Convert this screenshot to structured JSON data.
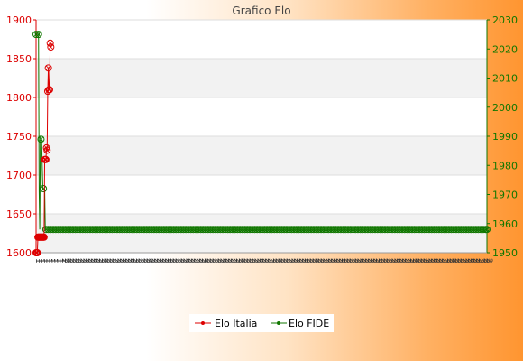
{
  "chart_data": {
    "type": "line",
    "title": "Grafico Elo",
    "grid": true,
    "legend_position": "bottom-center",
    "colors": {
      "left_axis": "#dd0000",
      "right_axis": "#117700",
      "series_italia": "#dd0000",
      "series_fide": "#117700"
    },
    "left_axis": {
      "min": 1600,
      "max": 1900,
      "ticks": [
        "1600",
        "1650",
        "1700",
        "1750",
        "1800",
        "1850",
        "1900"
      ]
    },
    "right_axis": {
      "min": 1950,
      "max": 2030,
      "ticks": [
        "1950",
        "1960",
        "1970",
        "1980",
        "1990",
        "2000",
        "2010",
        "2020",
        "2030"
      ]
    },
    "x_tick_labels": [
      "1",
      "1",
      "1",
      "1",
      "1",
      "1",
      "1",
      "1",
      "1",
      "1",
      "2",
      "2",
      "2",
      "2",
      "2",
      "2",
      "2",
      "2",
      "2",
      "2",
      "2",
      "2",
      "2",
      "2",
      "2",
      "2",
      "2",
      "2",
      "2",
      "2",
      "2",
      "2",
      "2",
      "2",
      "2",
      "2",
      "2",
      "2",
      "2",
      "2",
      "2",
      "2",
      "2",
      "2",
      "2",
      "2",
      "2",
      "2",
      "2",
      "2",
      "2",
      "2",
      "2",
      "2",
      "2",
      "2",
      "2",
      "2",
      "2",
      "2",
      "2",
      "2",
      "2",
      "2",
      "2",
      "2",
      "2",
      "2",
      "2",
      "2",
      "2",
      "2",
      "2",
      "2",
      "2",
      "2",
      "2",
      "2",
      "2",
      "2",
      "2",
      "2",
      "2",
      "2",
      "2",
      "2",
      "2",
      "2",
      "2",
      "2",
      "2",
      "2",
      "2",
      "2",
      "2",
      "2",
      "2",
      "2",
      "2",
      "2",
      "2",
      "2",
      "2",
      "2",
      "2",
      "2",
      "2",
      "2",
      "2",
      "2",
      "2",
      "2",
      "2",
      "2",
      "2",
      "2",
      "2",
      "2",
      "2",
      "2",
      "2",
      "2",
      "2",
      "2",
      "2",
      "2",
      "2",
      "2",
      "2",
      "2",
      "2",
      "2",
      "2",
      "2",
      "2",
      "2",
      "2",
      "2",
      "2",
      "2",
      "2",
      "2",
      "2",
      "2",
      "2",
      "2",
      "2",
      "2",
      "2",
      "2",
      "2",
      "2",
      "2",
      "2",
      "2",
      "2",
      "2",
      "2",
      "2",
      "2",
      "2",
      "2",
      "2",
      "2",
      "2",
      "2",
      "2",
      "2",
      "2",
      "2",
      "2",
      "2"
    ],
    "series": [
      {
        "name": "Elo Italia",
        "axis": "left",
        "values": [
          1600,
          1600,
          1600,
          1620,
          1620,
          1620,
          1620,
          1620,
          1620,
          1620,
          1620,
          1620,
          1620,
          1620,
          1720,
          1720,
          1720,
          1735,
          1732,
          1808,
          1838,
          1810,
          1810,
          1870,
          1865
        ]
      },
      {
        "name": "Elo FIDE",
        "axis": "right",
        "values": [
          2025,
          2025,
          2025,
          2025,
          2025,
          1971,
          1958,
          1990,
          1989,
          1989,
          1980,
          1972,
          1972,
          1972,
          1972,
          1958,
          1958,
          1958,
          1958,
          1958,
          1958,
          1958,
          1958,
          1958,
          1958,
          1958,
          1958,
          1958,
          1958,
          1958,
          1958,
          1958,
          1958,
          1958,
          1958,
          1958,
          1958,
          1958,
          1958,
          1958,
          1958,
          1958,
          1958,
          1958,
          1958,
          1958,
          1958,
          1958,
          1958,
          1958,
          1958,
          1958,
          1958,
          1958,
          1958,
          1958,
          1958,
          1958,
          1958,
          1958,
          1958,
          1958,
          1958,
          1958,
          1958,
          1958,
          1958,
          1958,
          1958,
          1958,
          1958,
          1958,
          1958,
          1958,
          1958,
          1958,
          1958,
          1958,
          1958,
          1958,
          1958,
          1958,
          1958,
          1958,
          1958,
          1958,
          1958,
          1958,
          1958,
          1958,
          1958,
          1958,
          1958,
          1958,
          1958,
          1958,
          1958,
          1958,
          1958,
          1958,
          1958,
          1958,
          1958,
          1958,
          1958,
          1958,
          1958,
          1958,
          1958,
          1958,
          1958,
          1958,
          1958,
          1958,
          1958,
          1958,
          1958,
          1958,
          1958,
          1958,
          1958,
          1958,
          1958,
          1958,
          1958,
          1958,
          1958,
          1958,
          1958,
          1958,
          1958,
          1958,
          1958,
          1958,
          1958,
          1958,
          1958,
          1958,
          1958,
          1958,
          1958,
          1958,
          1958,
          1958,
          1958,
          1958,
          1958,
          1958,
          1958,
          1958,
          1958,
          1958,
          1958,
          1958,
          1958,
          1958,
          1958,
          1958,
          1958,
          1958,
          1958,
          1958,
          1958,
          1958,
          1958,
          1958,
          1958,
          1958,
          1958,
          1958,
          1958,
          1958,
          1958,
          1958,
          1958,
          1958,
          1958,
          1958,
          1958,
          1958,
          1958,
          1958,
          1958,
          1958,
          1958,
          1958,
          1958,
          1958,
          1958,
          1958,
          1958,
          1958,
          1958,
          1958,
          1958,
          1958,
          1958,
          1958,
          1958,
          1958,
          1958,
          1958,
          1958,
          1958,
          1958,
          1958,
          1958,
          1958,
          1958,
          1958,
          1958,
          1958,
          1958,
          1958,
          1958,
          1958,
          1958,
          1958,
          1958,
          1958,
          1958,
          1958,
          1958,
          1958,
          1958,
          1958,
          1958,
          1958,
          1958,
          1958,
          1958,
          1958,
          1958,
          1958,
          1958,
          1958,
          1958,
          1958,
          1958,
          1958,
          1958,
          1958,
          1958,
          1958,
          1958,
          1958,
          1958,
          1958,
          1958,
          1958,
          1958,
          1958,
          1958,
          1958,
          1958,
          1958,
          1958,
          1958,
          1958,
          1958,
          1958,
          1958,
          1958,
          1958,
          1958,
          1958,
          1958,
          1958,
          1958,
          1958,
          1958,
          1958,
          1958,
          1958,
          1958,
          1958,
          1958,
          1958,
          1958,
          1958,
          1958,
          1958,
          1958,
          1958,
          1958,
          1958,
          1958,
          1958,
          1958,
          1958,
          1958,
          1958,
          1958,
          1958,
          1958,
          1958,
          1958,
          1958,
          1958,
          1958,
          1958,
          1958,
          1958,
          1958,
          1958,
          1958,
          1958,
          1958,
          1958,
          1958,
          1958,
          1958,
          1958,
          1958,
          1958,
          1958,
          1958,
          1958,
          1958,
          1958,
          1958,
          1958,
          1958,
          1958,
          1958,
          1958,
          1958,
          1958,
          1958,
          1958,
          1958,
          1958,
          1958,
          1958,
          1958,
          1958,
          1958,
          1958,
          1958,
          1958,
          1958,
          1958,
          1958,
          1958,
          1958,
          1958,
          1958,
          1958,
          1958,
          1958,
          1958,
          1958,
          1958,
          1958,
          1958,
          1958,
          1958,
          1958,
          1958,
          1958,
          1958,
          1958,
          1958,
          1958,
          1958,
          1958,
          1958,
          1958,
          1958,
          1958,
          1958,
          1958,
          1958,
          1958,
          1958,
          1958,
          1958,
          1958,
          1958,
          1958,
          1958,
          1958,
          1958,
          1958,
          1958,
          1958,
          1958,
          1958,
          1958,
          1958,
          1958,
          1958,
          1958,
          1958,
          1958,
          1958,
          1958,
          1958,
          1958,
          1958,
          1958,
          1958,
          1958,
          1958,
          1958,
          1958,
          1958,
          1958,
          1958,
          1958,
          1958,
          1958,
          1958,
          1958,
          1958,
          1958,
          1958,
          1958,
          1958,
          1958,
          1958,
          1958,
          1958,
          1958,
          1958,
          1958,
          1958,
          1958,
          1958,
          1958,
          1958,
          1958,
          1958,
          1958,
          1958,
          1958,
          1958,
          1958,
          1958,
          1958,
          1958,
          1958,
          1958,
          1958,
          1958,
          1958,
          1958,
          1958,
          1958,
          1958,
          1958,
          1958,
          1958,
          1958,
          1958,
          1958,
          1958,
          1958,
          1958,
          1958,
          1958,
          1958,
          1958,
          1958,
          1958,
          1958,
          1958,
          1958,
          1958,
          1958,
          1958,
          1958,
          1958,
          1958,
          1958,
          1958,
          1958,
          1958,
          1958,
          1958,
          1958,
          1958,
          1958,
          1958,
          1958,
          1958,
          1958,
          1958,
          1958,
          1958,
          1958,
          1958,
          1958,
          1958,
          1958,
          1958,
          1958,
          1958,
          1958,
          1958,
          1958,
          1958,
          1958,
          1958,
          1958,
          1958,
          1958,
          1958,
          1958,
          1958,
          1958,
          1958,
          1958,
          1958,
          1958,
          1958,
          1958,
          1958,
          1958,
          1958,
          1958,
          1958,
          1958,
          1958,
          1958,
          1958,
          1958,
          1958,
          1958,
          1958,
          1958,
          1958,
          1958,
          1958,
          1958,
          1958,
          1958,
          1958,
          1958,
          1958,
          1958,
          1958,
          1958,
          1958,
          1958,
          1958,
          1958,
          1958,
          1958,
          1958,
          1958,
          1958,
          1958,
          1958,
          1958,
          1958,
          1958,
          1958,
          1958,
          1958,
          1958,
          1958,
          1958,
          1958,
          1958,
          1958,
          1958,
          1958,
          1958,
          1958,
          1958,
          1958,
          1958,
          1958,
          1958,
          1958,
          1958,
          1958,
          1958,
          1958,
          1958,
          1958,
          1958,
          1958,
          1958,
          1958,
          1958,
          1958,
          1958,
          1958,
          1958,
          1958,
          1958,
          1958,
          1958,
          1958,
          1958,
          1958,
          1958,
          1958,
          1958,
          1958,
          1958,
          1958,
          1958,
          1958,
          1958,
          1958,
          1958,
          1958,
          1958,
          1958,
          1958,
          1958,
          1958,
          1958,
          1958,
          1958,
          1958,
          1958,
          1958,
          1958,
          1958,
          1958,
          1958,
          1958,
          1958,
          1958,
          1958,
          1958,
          1958,
          1958,
          1958,
          1958,
          1958,
          1958,
          1958,
          1958,
          1958,
          1958,
          1958,
          1958,
          1958,
          1958,
          1958,
          1958,
          1958,
          1958,
          1958,
          1958,
          1958,
          1958,
          1958,
          1958,
          1958,
          1958,
          1958,
          1958,
          1958,
          1958,
          1958,
          1958,
          1958,
          1958,
          1958,
          1958,
          1958,
          1958,
          1958,
          1958,
          1958,
          1958,
          1958,
          1958,
          1958,
          1958,
          1958,
          1958,
          1958,
          1958,
          1958,
          1958,
          1958,
          1958,
          1958,
          1958,
          1958,
          1958,
          1958,
          1958,
          1958,
          1958,
          1958,
          1958,
          1958,
          1958,
          1958,
          1958,
          1958,
          1958,
          1958,
          1958,
          1958,
          1958,
          1958,
          1958,
          1958,
          1958,
          1958,
          1958,
          1958,
          1958,
          1958,
          1958,
          1958,
          1958,
          1958,
          1958,
          1958,
          1958,
          1958,
          1958,
          1958,
          1958,
          1958,
          1958,
          1958,
          1958,
          1958,
          1958,
          1958,
          1958,
          1958,
          1958,
          1958
        ]
      }
    ]
  }
}
